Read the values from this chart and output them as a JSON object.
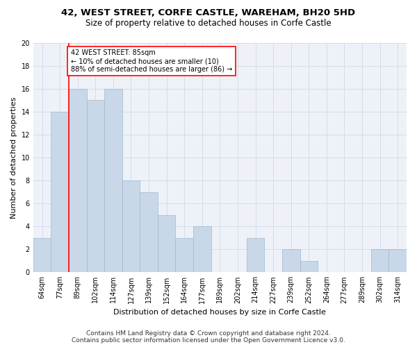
{
  "title": "42, WEST STREET, CORFE CASTLE, WAREHAM, BH20 5HD",
  "subtitle": "Size of property relative to detached houses in Corfe Castle",
  "xlabel": "Distribution of detached houses by size in Corfe Castle",
  "ylabel": "Number of detached properties",
  "categories": [
    "64sqm",
    "77sqm",
    "89sqm",
    "102sqm",
    "114sqm",
    "127sqm",
    "139sqm",
    "152sqm",
    "164sqm",
    "177sqm",
    "189sqm",
    "202sqm",
    "214sqm",
    "227sqm",
    "239sqm",
    "252sqm",
    "264sqm",
    "277sqm",
    "289sqm",
    "302sqm",
    "314sqm"
  ],
  "values": [
    3,
    14,
    16,
    15,
    16,
    8,
    7,
    5,
    3,
    4,
    0,
    0,
    3,
    0,
    2,
    1,
    0,
    0,
    0,
    2,
    2
  ],
  "bar_color": "#c8d8e8",
  "bar_edge_color": "#a0b8cc",
  "highlight_box_text": "42 WEST STREET: 85sqm\n← 10% of detached houses are smaller (10)\n88% of semi-detached houses are larger (86) →",
  "highlight_box_color": "red",
  "ylim": [
    0,
    20
  ],
  "yticks": [
    0,
    2,
    4,
    6,
    8,
    10,
    12,
    14,
    16,
    18,
    20
  ],
  "grid_color": "#d0d8e8",
  "background_color": "#eef2f8",
  "footer_line1": "Contains HM Land Registry data © Crown copyright and database right 2024.",
  "footer_line2": "Contains public sector information licensed under the Open Government Licence v3.0.",
  "title_fontsize": 9.5,
  "subtitle_fontsize": 8.5,
  "axis_label_fontsize": 8,
  "tick_fontsize": 7,
  "annotation_fontsize": 7,
  "footer_fontsize": 6.5
}
